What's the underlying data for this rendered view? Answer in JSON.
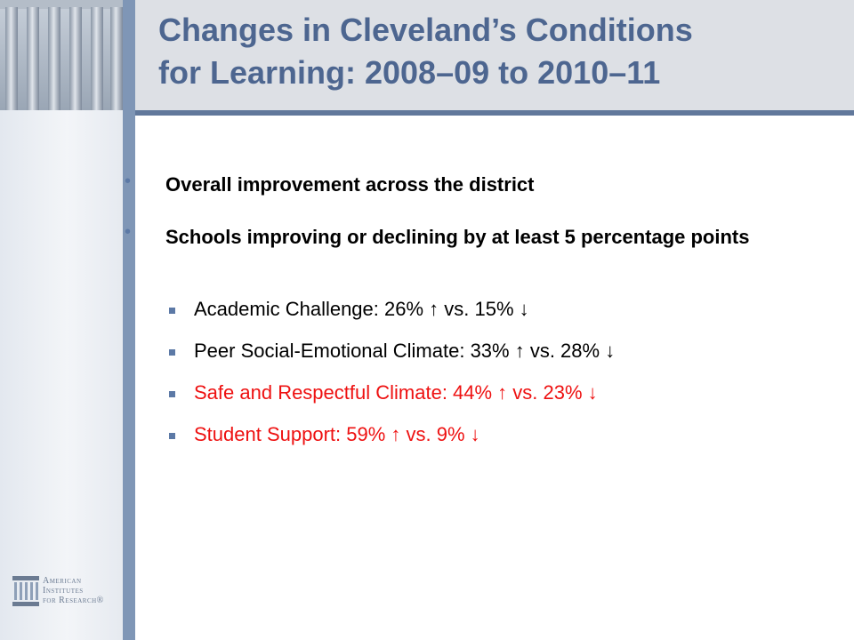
{
  "header": {
    "title_line1": "Changes in Cleveland’s Conditions",
    "title_line2": "for Learning:  2008–09 to 2010–11"
  },
  "bullets": [
    {
      "text": "Overall improvement across the district"
    },
    {
      "text": "Schools improving or declining by at least 5 percentage points"
    }
  ],
  "sub_items": [
    {
      "text": "Academic Challenge: 26% ↑ vs. 15% ↓",
      "color": "#000000"
    },
    {
      "text": "Peer Social-Emotional Climate: 33% ↑ vs. 28% ↓",
      "color": "#000000"
    },
    {
      "text": "Safe and Respectful Climate: 44% ↑ vs. 23% ↓",
      "color": "#ee1111"
    },
    {
      "text": "Student Support: 59% ↑ vs. 9% ↓",
      "color": "#ee1111"
    }
  ],
  "logo": {
    "line1": "American",
    "line2": "Institutes",
    "line3": "for Research®"
  },
  "colors": {
    "title": "#4d6690",
    "accent": "#5c79a6",
    "highlight": "#ee1111"
  }
}
